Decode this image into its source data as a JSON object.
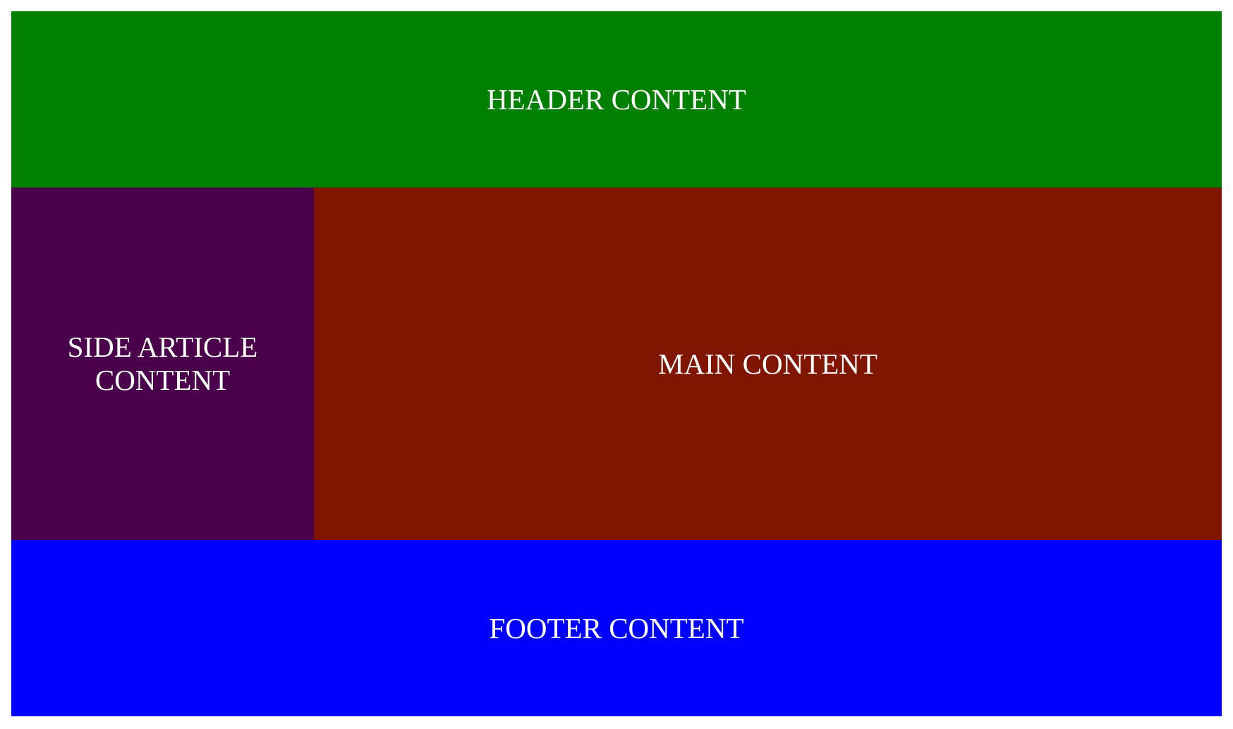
{
  "header": {
    "text": "HEADER CONTENT",
    "color": "#008000"
  },
  "side_article": {
    "text": "SIDE ARTICLE CONTENT",
    "color": "#4B004B"
  },
  "main": {
    "text": "MAIN CONTENT",
    "color": "#801500"
  },
  "footer": {
    "text": "FOOTER CONTENT",
    "color": "#0000FF"
  }
}
